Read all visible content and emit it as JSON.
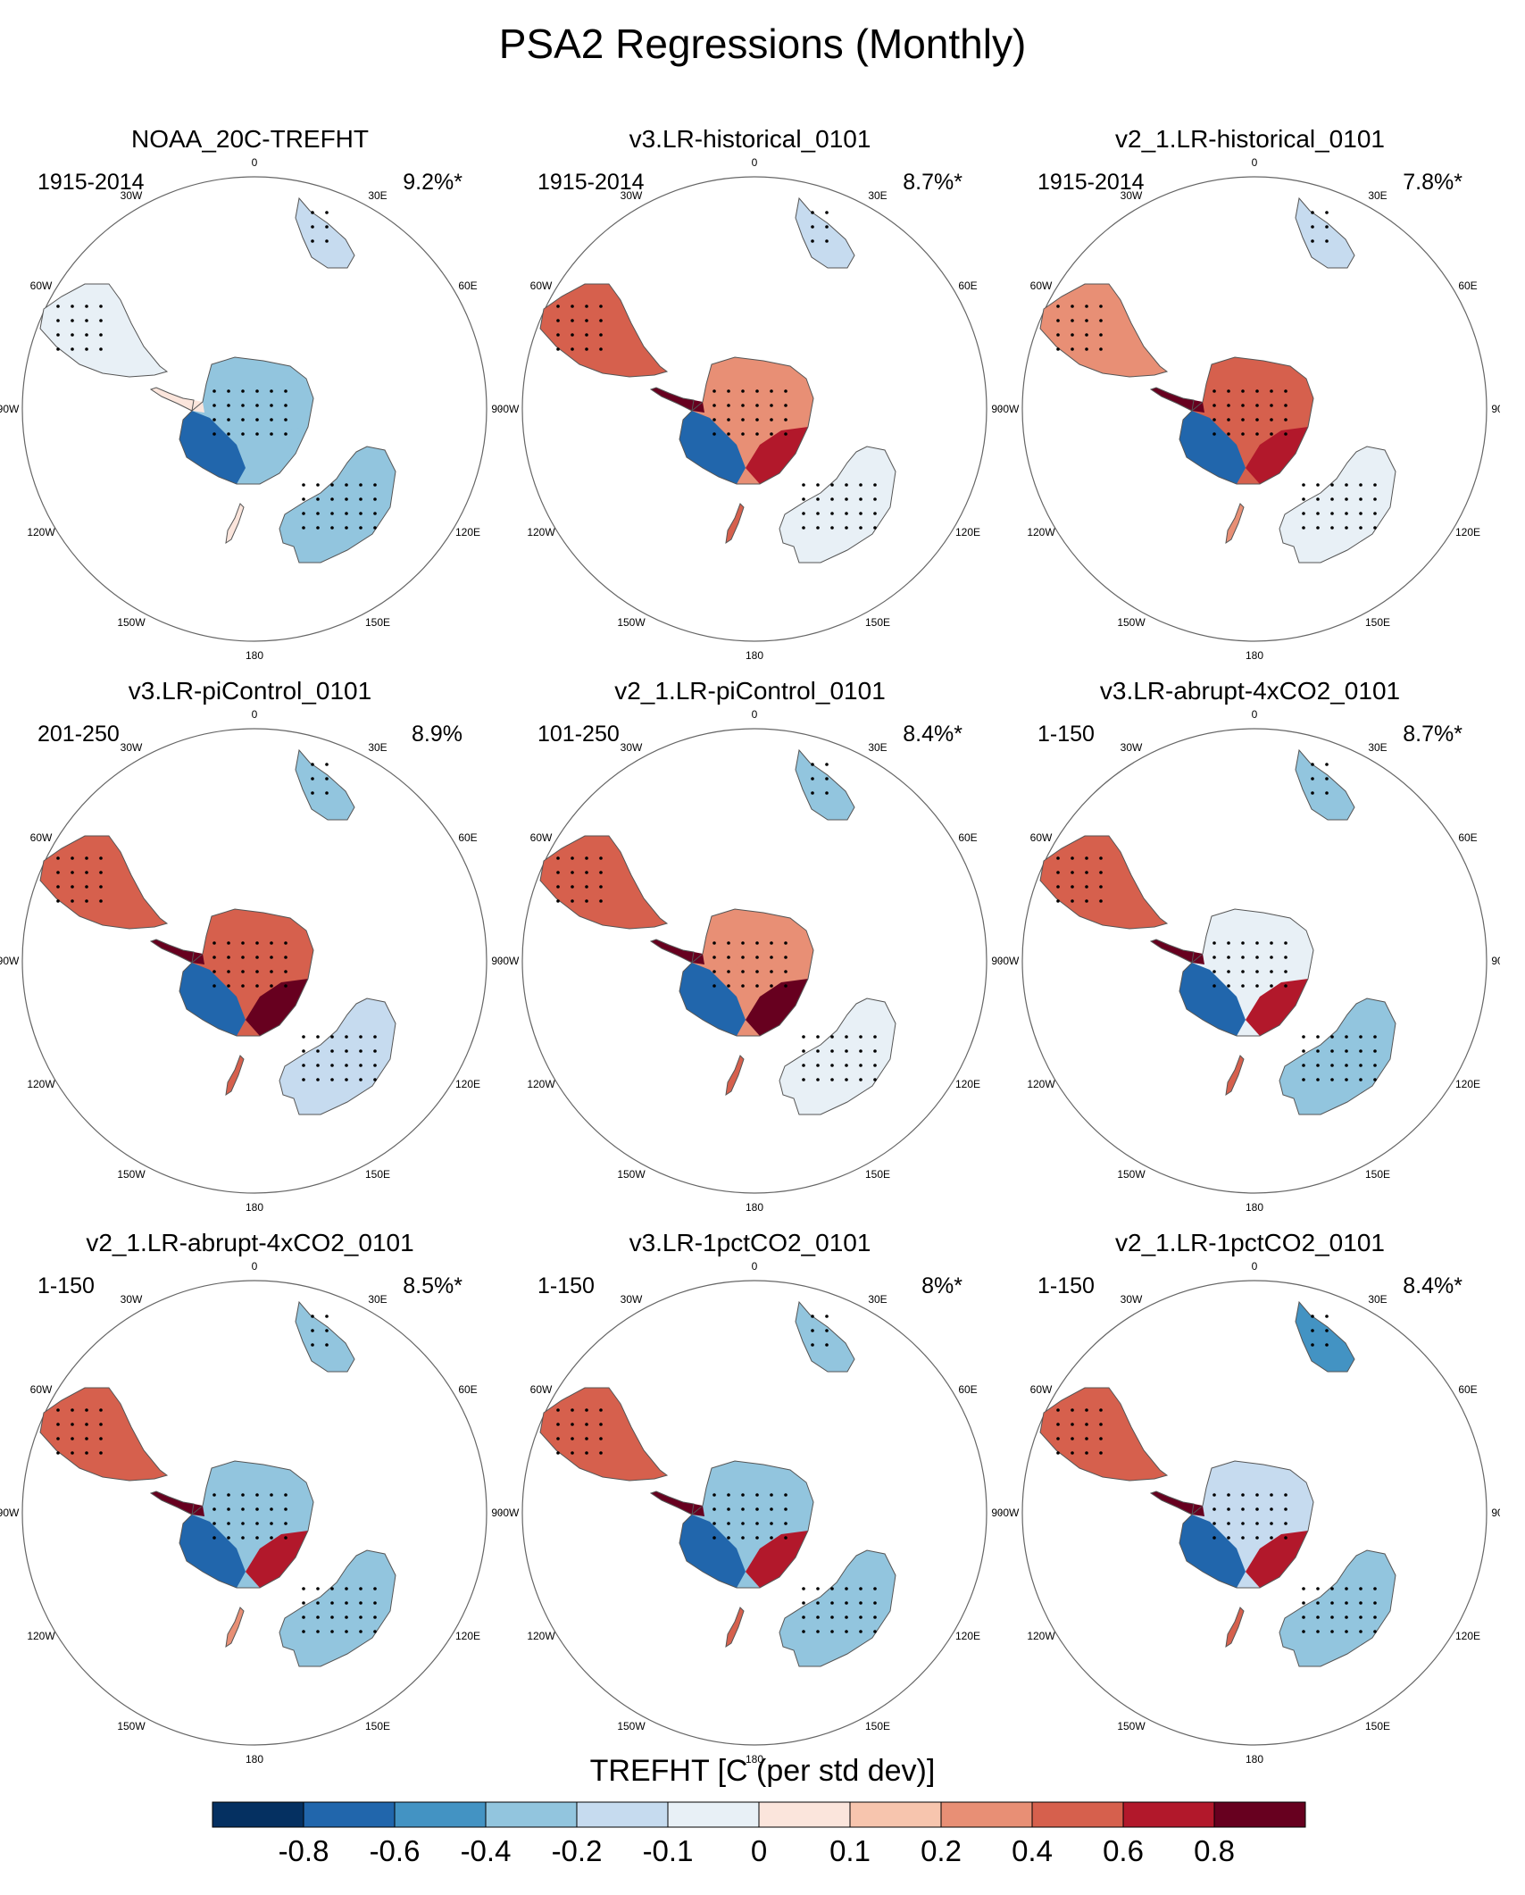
{
  "chart_data": {
    "type": "map",
    "title": "PSA2 Regressions (Monthly)",
    "projection": "south polar stereographic",
    "panels": [
      {
        "title": "NOAA_20C-TREFHT",
        "period": "1915-2014",
        "variance": "9.2%*",
        "regions": {
          "south_america": -0.1,
          "south_africa": -0.2,
          "australia": -0.4,
          "new_zealand": 0.0,
          "antarctic_peninsula": 0.0,
          "west_antarctica": -0.8,
          "east_antarctica": -0.4,
          "wilkes_coast": -0.4
        }
      },
      {
        "title": "v3.LR-historical_0101",
        "period": "1915-2014",
        "variance": "8.7%*",
        "regions": {
          "south_america": 0.4,
          "south_africa": -0.2,
          "australia": -0.1,
          "new_zealand": 0.4,
          "antarctic_peninsula": 0.8,
          "west_antarctica": -0.8,
          "east_antarctica": 0.2,
          "wilkes_coast": 0.6
        }
      },
      {
        "title": "v2_1.LR-historical_0101",
        "period": "1915-2014",
        "variance": "7.8%*",
        "regions": {
          "south_america": 0.2,
          "south_africa": -0.2,
          "australia": -0.1,
          "new_zealand": 0.2,
          "antarctic_peninsula": 0.8,
          "west_antarctica": -0.8,
          "east_antarctica": 0.4,
          "wilkes_coast": 0.6
        }
      },
      {
        "title": "v3.LR-piControl_0101",
        "period": "201-250",
        "variance": "8.9%",
        "regions": {
          "south_america": 0.4,
          "south_africa": -0.4,
          "australia": -0.2,
          "new_zealand": 0.4,
          "antarctic_peninsula": 0.8,
          "west_antarctica": -0.8,
          "east_antarctica": 0.4,
          "wilkes_coast": 0.8
        }
      },
      {
        "title": "v2_1.LR-piControl_0101",
        "period": "101-250",
        "variance": "8.4%*",
        "regions": {
          "south_america": 0.4,
          "south_africa": -0.4,
          "australia": -0.1,
          "new_zealand": 0.4,
          "antarctic_peninsula": 0.8,
          "west_antarctica": -0.8,
          "east_antarctica": 0.2,
          "wilkes_coast": 0.8
        }
      },
      {
        "title": "v3.LR-abrupt-4xCO2_0101",
        "period": "1-150",
        "variance": "8.7%*",
        "regions": {
          "south_america": 0.4,
          "south_africa": -0.4,
          "australia": -0.4,
          "new_zealand": 0.4,
          "antarctic_peninsula": 0.8,
          "west_antarctica": -0.8,
          "east_antarctica": -0.1,
          "wilkes_coast": 0.6
        }
      },
      {
        "title": "v2_1.LR-abrupt-4xCO2_0101",
        "period": "1-150",
        "variance": "8.5%*",
        "regions": {
          "south_america": 0.4,
          "south_africa": -0.4,
          "australia": -0.4,
          "new_zealand": 0.2,
          "antarctic_peninsula": 0.8,
          "west_antarctica": -0.8,
          "east_antarctica": -0.4,
          "wilkes_coast": 0.6
        }
      },
      {
        "title": "v3.LR-1pctCO2_0101",
        "period": "1-150",
        "variance": "8%*",
        "regions": {
          "south_america": 0.4,
          "south_africa": -0.4,
          "australia": -0.4,
          "new_zealand": 0.4,
          "antarctic_peninsula": 0.8,
          "west_antarctica": -0.8,
          "east_antarctica": -0.4,
          "wilkes_coast": 0.6
        }
      },
      {
        "title": "v2_1.LR-1pctCO2_0101",
        "period": "1-150",
        "variance": "8.4%*",
        "regions": {
          "south_america": 0.4,
          "south_africa": -0.6,
          "australia": -0.4,
          "new_zealand": 0.4,
          "antarctic_peninsula": 0.8,
          "west_antarctica": -0.8,
          "east_antarctica": -0.2,
          "wilkes_coast": 0.6
        }
      }
    ],
    "longitude_labels": [
      "0",
      "30E",
      "60E",
      "90E",
      "120E",
      "150E",
      "180",
      "150W",
      "120W",
      "90W",
      "60W",
      "30W"
    ],
    "colorbar": {
      "title": "TREFHT [C (per std dev)]",
      "levels": [
        -0.8,
        -0.6,
        -0.4,
        -0.2,
        -0.1,
        0,
        0.1,
        0.2,
        0.4,
        0.6,
        0.8
      ],
      "tick_labels": [
        "-0.8",
        "-0.6",
        "-0.4",
        "-0.2",
        "-0.1",
        "0",
        "0.1",
        "0.2",
        "0.4",
        "0.6",
        "0.8"
      ],
      "colors": [
        "#053061",
        "#2166ac",
        "#4393c3",
        "#92c5de",
        "#c6dbef",
        "#e8f0f6",
        "#fbe5dc",
        "#f7c5ae",
        "#e88f75",
        "#d6604d",
        "#b2182b",
        "#67001f"
      ]
    }
  }
}
